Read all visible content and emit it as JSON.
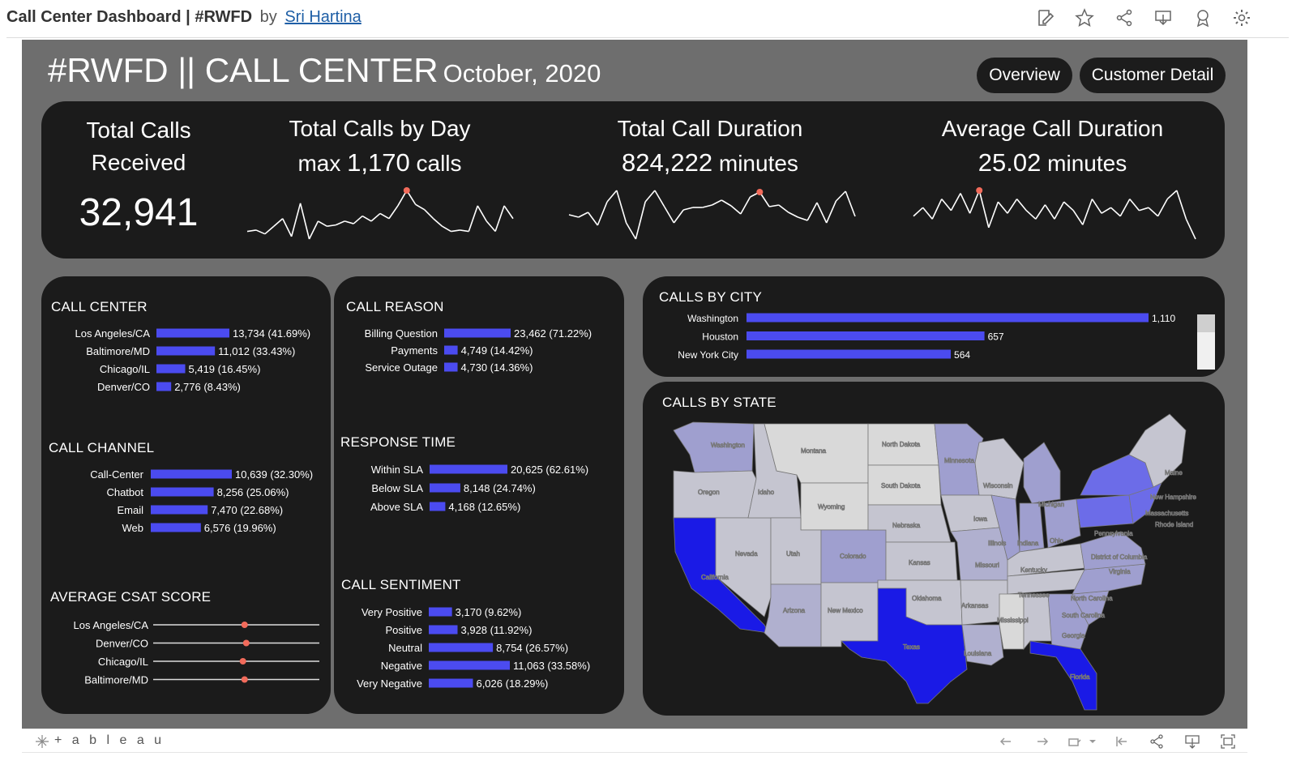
{
  "viz": {
    "title": "Call Center Dashboard | #RWFD",
    "by": "by",
    "author": "Sri Hartina"
  },
  "toolbar_icons": [
    "edit-icon",
    "favorite-star-icon",
    "share-icon",
    "download-icon",
    "badge-icon",
    "settings-gear-icon"
  ],
  "header": {
    "title": "#RWFD || CALL CENTER",
    "subtitle": "October, 2020",
    "buttons": [
      "Overview",
      "Customer Detail"
    ]
  },
  "kpis": {
    "total_calls": {
      "label_line1": "Total Calls",
      "label_line2": "Received",
      "value": "32,941"
    },
    "by_day": {
      "label": "Total Calls by Day",
      "prefix": "max",
      "value": "1,170",
      "unit": "calls"
    },
    "duration": {
      "label": "Total Call Duration",
      "value": "824,222",
      "unit": "minutes"
    },
    "avg_duration": {
      "label": "Average Call Duration",
      "value": "25.02",
      "unit": "minutes"
    }
  },
  "chart_data": [
    {
      "type": "line",
      "name": "total_calls_by_day",
      "x": [
        1,
        2,
        3,
        4,
        5,
        6,
        7,
        8,
        9,
        10,
        11,
        12,
        13,
        14,
        15,
        16,
        17,
        18,
        19,
        20,
        21,
        22,
        23,
        24,
        25,
        26,
        27,
        28,
        29,
        30,
        31
      ],
      "values": [
        1010,
        1015,
        1000,
        1030,
        1060,
        990,
        1120,
        980,
        1050,
        1030,
        1035,
        1050,
        1040,
        1070,
        1050,
        1080,
        1060,
        1110,
        1170,
        1115,
        1095,
        1060,
        1030,
        1010,
        1015,
        1010,
        1110,
        1050,
        1010,
        1110,
        1060
      ],
      "highlight_index": 18,
      "colors": {
        "line": "#ffffff",
        "highlight": "#f26b5b"
      }
    },
    {
      "type": "line",
      "name": "total_call_duration_by_day",
      "x": [
        1,
        2,
        3,
        4,
        5,
        6,
        7,
        8,
        9,
        10,
        11,
        12,
        13,
        14,
        15,
        16,
        17,
        18,
        19,
        20,
        21,
        22,
        23,
        24,
        25,
        26,
        27,
        28,
        29,
        30,
        31
      ],
      "values": [
        27200,
        26900,
        27500,
        25900,
        28800,
        30200,
        26200,
        24200,
        28800,
        30200,
        28200,
        26200,
        27800,
        28100,
        28100,
        28400,
        29000,
        28300,
        27300,
        29400,
        30000,
        28200,
        28400,
        27500,
        26900,
        26500,
        28700,
        26200,
        28900,
        30100,
        27000
      ],
      "highlight_index": 20,
      "colors": {
        "line": "#ffffff",
        "highlight": "#f26b5b"
      }
    },
    {
      "type": "line",
      "name": "average_call_duration_by_day",
      "x": [
        1,
        2,
        3,
        4,
        5,
        6,
        7,
        8,
        9,
        10,
        11,
        12,
        13,
        14,
        15,
        16,
        17,
        18,
        19,
        20,
        21,
        22,
        23,
        24,
        25,
        26,
        27,
        28,
        29,
        30,
        31
      ],
      "values": [
        25.0,
        25.3,
        24.9,
        25.6,
        25.2,
        25.8,
        25.1,
        25.9,
        24.6,
        25.5,
        25.1,
        25.6,
        25.2,
        24.9,
        25.4,
        24.9,
        25.5,
        25.2,
        24.7,
        25.6,
        25.1,
        25.3,
        25.0,
        25.6,
        25.2,
        25.3,
        25.0,
        25.6,
        25.9,
        24.9,
        24.2
      ],
      "highlight_index": 7,
      "colors": {
        "line": "#ffffff",
        "highlight": "#f26b5b"
      }
    },
    {
      "type": "bar",
      "name": "call_center",
      "title": "CALL CENTER",
      "categories": [
        "Los Angeles/CA",
        "Baltimore/MD",
        "Chicago/IL",
        "Denver/CO"
      ],
      "values": [
        13734,
        11012,
        5419,
        2776
      ],
      "labels": [
        "13,734 (41.69%)",
        "11,012 (33.43%)",
        "5,419 (16.45%)",
        "2,776 (8.43%)"
      ]
    },
    {
      "type": "bar",
      "name": "call_channel",
      "title": "CALL CHANNEL",
      "categories": [
        "Call-Center",
        "Chatbot",
        "Email",
        "Web"
      ],
      "values": [
        10639,
        8256,
        7470,
        6576
      ],
      "labels": [
        "10,639 (32.30%)",
        "8,256 (25.06%)",
        "7,470 (22.68%)",
        "6,576 (19.96%)"
      ]
    },
    {
      "type": "scatter",
      "name": "average_csat_score",
      "title": "AVERAGE CSAT SCORE",
      "categories": [
        "Los Angeles/CA",
        "Denver/CO",
        "Chicago/IL",
        "Baltimore/MD"
      ],
      "values": [
        0.55,
        0.56,
        0.54,
        0.55
      ],
      "colors": {
        "dot": "#f26b5b",
        "rail": "#dddddd"
      }
    },
    {
      "type": "bar",
      "name": "call_reason",
      "title": "CALL REASON",
      "categories": [
        "Billing Question",
        "Payments",
        "Service Outage"
      ],
      "values": [
        23462,
        4749,
        4730
      ],
      "labels": [
        "23,462 (71.22%)",
        "4,749 (14.42%)",
        "4,730 (14.36%)"
      ]
    },
    {
      "type": "bar",
      "name": "response_time",
      "title": "RESPONSE TIME",
      "categories": [
        "Within SLA",
        "Below SLA",
        "Above SLA"
      ],
      "values": [
        20625,
        8148,
        4168
      ],
      "labels": [
        "20,625 (62.61%)",
        "8,148 (24.74%)",
        "4,168 (12.65%)"
      ]
    },
    {
      "type": "bar",
      "name": "call_sentiment",
      "title": "CALL SENTIMENT",
      "categories": [
        "Very Positive",
        "Positive",
        "Neutral",
        "Negative",
        "Very Negative"
      ],
      "values": [
        3170,
        3928,
        8754,
        11063,
        6026
      ],
      "labels": [
        "3,170 (9.62%)",
        "3,928 (11.92%)",
        "8,754 (26.57%)",
        "11,063 (33.58%)",
        "6,026 (18.29%)"
      ]
    },
    {
      "type": "bar",
      "name": "calls_by_city",
      "title": "CALLS BY CITY",
      "categories": [
        "Washington",
        "Houston",
        "New York City"
      ],
      "values": [
        1110,
        657,
        564
      ],
      "labels": [
        "1,110",
        "657",
        "564"
      ]
    }
  ],
  "map": {
    "title": "CALLS BY STATE",
    "states": [
      "Washington",
      "Montana",
      "North Dakota",
      "Minnesota",
      "Oregon",
      "Idaho",
      "Wyoming",
      "South Dakota",
      "Wisconsin",
      "Michigan",
      "Maine",
      "New Hampshire",
      "Massachusetts",
      "Rhode Island",
      "Nebraska",
      "Iowa",
      "Illinois",
      "Indiana",
      "Ohio",
      "Pennsylvania",
      "Nevada",
      "Utah",
      "Colorado",
      "Kansas",
      "Missouri",
      "Kentucky",
      "District of Columbia",
      "Virginia",
      "California",
      "Arizona",
      "New Mexico",
      "Oklahoma",
      "Arkansas",
      "Tennessee",
      "North Carolina",
      "South Carolina",
      "Mississippi",
      "Georgia",
      "Texas",
      "Louisiana",
      "Florida"
    ],
    "colors": {
      "high": "#1a1ae6",
      "mid": "#6c6ce8",
      "low": "#9f9fcf",
      "lower": "#b3b3c8",
      "none": "#d9d9d9"
    }
  },
  "colors": {
    "bar": "#4b4bf0",
    "panel": "#1b1b1b",
    "background": "#6e6e6e",
    "accent": "#f26b5b"
  },
  "footer": {
    "brand": "+ a b l e a u"
  }
}
